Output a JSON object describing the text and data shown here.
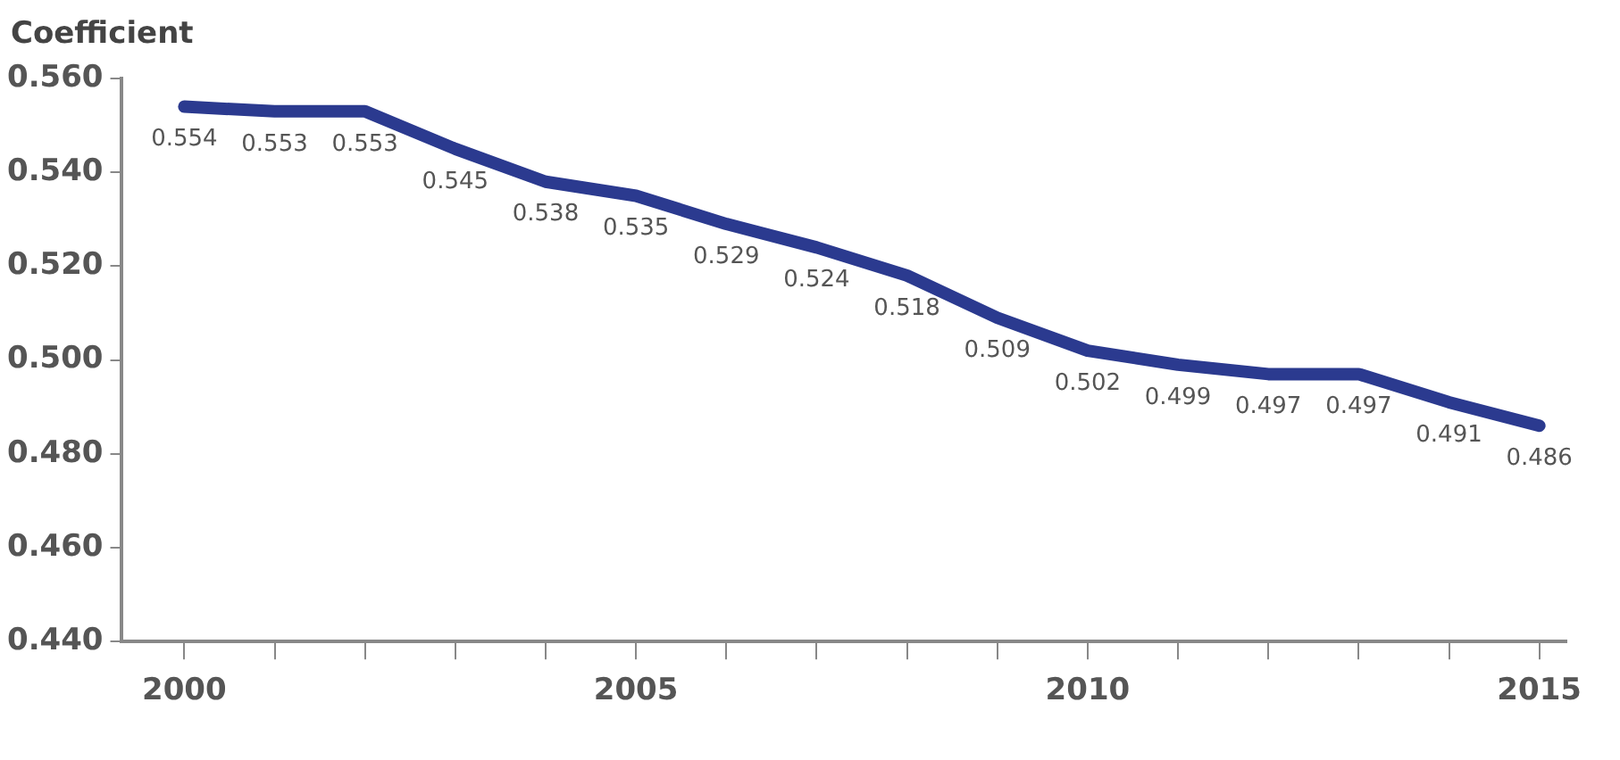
{
  "chart_data": {
    "type": "line",
    "ylabel": "Coefficient",
    "x": [
      2000,
      2001,
      2002,
      2003,
      2004,
      2005,
      2006,
      2007,
      2008,
      2009,
      2010,
      2011,
      2012,
      2013,
      2014,
      2015
    ],
    "series": [
      {
        "color": "#2b3a8f",
        "values": [
          0.554,
          0.553,
          0.553,
          0.545,
          0.538,
          0.535,
          0.529,
          0.524,
          0.518,
          0.509,
          0.502,
          0.499,
          0.497,
          0.497,
          0.491,
          0.486
        ]
      }
    ],
    "xlim": [
      1999.3,
      2015.3
    ],
    "xticks": [
      2000,
      {
        "value": 2001,
        "label": null
      },
      {
        "value": 2002,
        "label": null
      },
      {
        "value": 2003,
        "label": null
      },
      {
        "value": 2004,
        "label": null
      },
      2005,
      {
        "value": 2006,
        "label": null
      },
      {
        "value": 2007,
        "label": null
      },
      {
        "value": 2008,
        "label": null
      },
      {
        "value": 2009,
        "label": null
      },
      2010,
      {
        "value": 2011,
        "label": null
      },
      {
        "value": 2012,
        "label": null
      },
      {
        "value": 2013,
        "label": null
      },
      {
        "value": 2014,
        "label": null
      },
      2015
    ],
    "ylim": [
      0.44,
      0.56
    ],
    "yticks": [
      {
        "value": 0.44,
        "label": "0.440"
      },
      {
        "value": 0.46,
        "label": "0.460"
      },
      {
        "value": 0.48,
        "label": "0.480"
      },
      {
        "value": 0.5,
        "label": "0.500"
      },
      {
        "value": 0.52,
        "label": "0.520"
      },
      {
        "value": 0.54,
        "label": "0.540"
      },
      {
        "value": 0.56,
        "label": "0.560"
      }
    ],
    "grid": false,
    "legend": false,
    "marker": "none",
    "line_style": "solid",
    "data_labels": true
  }
}
